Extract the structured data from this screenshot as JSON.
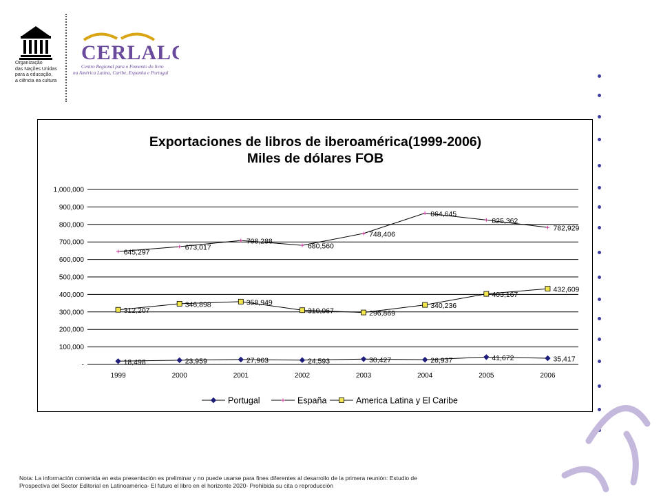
{
  "header": {
    "unesco_logo_text": "UNESCO",
    "unesco_caption": [
      "Organização",
      "das Nações Unidas",
      "para a educação,",
      "a ciência ea cultura"
    ],
    "cerlalc_name": "CERLALC",
    "cerlalc_subtitle": [
      "Centro Regional para o Fomento do livro",
      "na América Latina, Caribe, Espanha e Portugal"
    ]
  },
  "chart_data": {
    "type": "line",
    "title": "Exportaciones de libros de iberoamérica(1999-2006)",
    "subtitle": "Miles de dólares FOB",
    "categories": [
      "1999",
      "2000",
      "2001",
      "2002",
      "2003",
      "2004",
      "2005",
      "2006"
    ],
    "ylim": [
      0,
      1000000
    ],
    "yticks": [
      "-",
      "100,000",
      "200,000",
      "300,000",
      "400,000",
      "500,000",
      "600,000",
      "700,000",
      "800,000",
      "900,000",
      "1,000,000"
    ],
    "grid": true,
    "legend": "bottom",
    "series": [
      {
        "name": "Portugal",
        "marker": "diamond",
        "color": "#1f1f7a",
        "values": [
          18498,
          23959,
          27963,
          24593,
          30427,
          26937,
          41672,
          35417
        ],
        "labels": [
          "18,498",
          "23,959",
          "27,963",
          "24,593",
          "30,427",
          "26,937",
          "41,672",
          "35,417"
        ]
      },
      {
        "name": "España",
        "marker": "plus",
        "color": "#cc3399",
        "values": [
          645297,
          673017,
          708288,
          680560,
          748406,
          864645,
          825362,
          782929
        ],
        "labels": [
          "645,297",
          "673,017",
          "708,288",
          "680,560",
          "748,406",
          "864,645",
          "825,362",
          "782,929"
        ]
      },
      {
        "name": "America Latina y El Caribe",
        "marker": "square",
        "color": "#f2e64c",
        "values": [
          312207,
          346898,
          358949,
          310067,
          296869,
          340236,
          403167,
          432609
        ],
        "labels": [
          "312,207",
          "346,898",
          "358,949",
          "310,067",
          "296,869",
          "340,236",
          "403,167",
          "432,609"
        ]
      }
    ]
  },
  "footnote": {
    "line1": "Nota: La información contenida en esta presentación es preliminar y no puede usarse para fines diferentes al desarrollo de la primera reunión: Estudio de",
    "line2": "Prospectiva del Sector Editorial en Latinoamérica- El futuro el libro en el horizonte 2020-  Prohibida su cita o reproducción"
  },
  "colors": {
    "accent_purple": "#6a4a9c",
    "dot_blue": "#3a3f9e",
    "gold": "#d9a514"
  }
}
